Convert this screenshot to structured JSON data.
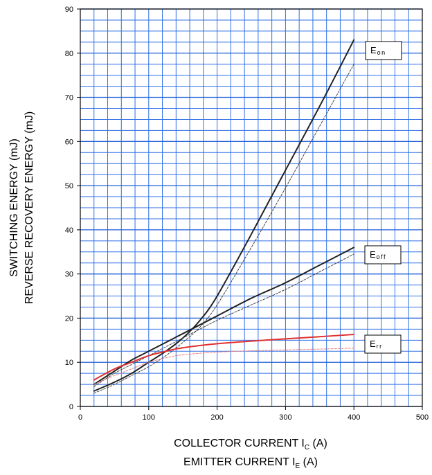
{
  "chart_data": {
    "type": "line",
    "xlabel": "COLLECTOR CURRENT I_C (A) / EMITTER CURRENT I_E (A)",
    "ylabel": "SWITCHING ENERGY (mJ) / REVERSE RECOVERY ENERGY (mJ)",
    "xlim": [
      0,
      500
    ],
    "ylim": [
      0,
      90
    ],
    "x_ticks": [
      "0",
      "100",
      "200",
      "300",
      "400",
      "500"
    ],
    "y_ticks": [
      "0",
      "10",
      "20",
      "30",
      "40",
      "50",
      "60",
      "70",
      "80",
      "90"
    ],
    "grid": true,
    "x_title_lines": [
      {
        "text": "COLLECTOR CURRENT",
        "symbol": "I",
        "sub": "C",
        "unit": "(A)"
      },
      {
        "text": "EMITTER CURRENT",
        "symbol": "I",
        "sub": "E",
        "unit": "(A)"
      }
    ],
    "y_title_lines": [
      {
        "text": "SWITCHING ENERGY   (mJ)"
      },
      {
        "text": "REVERSE RECOVERY ENERGY   (mJ)"
      }
    ],
    "series": [
      {
        "name": "Eon",
        "label_main": "E",
        "label_sub": "on",
        "color": "#222222",
        "style": "solid",
        "x": [
          20,
          50,
          75,
          100,
          125,
          150,
          175,
          200,
          250,
          300,
          350,
          400
        ],
        "y": [
          3.5,
          5.5,
          7.5,
          10.0,
          12.5,
          15.5,
          19.5,
          25.0,
          39.0,
          53.5,
          68.0,
          83.0
        ]
      },
      {
        "name": "Eon (dashed)",
        "color": "#444444",
        "style": "dashed",
        "x": [
          20,
          50,
          75,
          100,
          125,
          150,
          175,
          200,
          250,
          300,
          350,
          400
        ],
        "y": [
          3.0,
          5.0,
          7.0,
          9.0,
          11.5,
          14.5,
          18.0,
          23.0,
          36.0,
          49.5,
          63.5,
          77.5
        ]
      },
      {
        "name": "Eoff",
        "label_main": "E",
        "label_sub": "off",
        "color": "#222222",
        "style": "solid",
        "x": [
          20,
          50,
          75,
          100,
          150,
          200,
          250,
          300,
          350,
          400
        ],
        "y": [
          5.0,
          8.0,
          10.5,
          12.5,
          16.5,
          20.5,
          24.5,
          28.0,
          32.0,
          36.0
        ]
      },
      {
        "name": "Eoff (dashed)",
        "color": "#444444",
        "style": "dashed",
        "x": [
          20,
          50,
          75,
          100,
          150,
          200,
          250,
          300,
          350,
          400
        ],
        "y": [
          4.5,
          7.5,
          9.5,
          11.5,
          15.5,
          19.5,
          23.0,
          26.5,
          30.5,
          34.5
        ]
      },
      {
        "name": "Err",
        "label_main": "E",
        "label_sub": "rr",
        "color": "#e03030",
        "style": "solid",
        "x": [
          20,
          50,
          75,
          100,
          125,
          150,
          200,
          250,
          300,
          350,
          400
        ],
        "y": [
          6.0,
          8.5,
          10.0,
          11.5,
          12.5,
          13.3,
          14.2,
          14.8,
          15.3,
          15.8,
          16.3
        ]
      },
      {
        "name": "Err (dashed)",
        "color": "#f08080",
        "style": "dashed",
        "x": [
          20,
          50,
          75,
          100,
          125,
          150,
          200,
          250,
          300,
          350,
          400
        ],
        "y": [
          5.0,
          7.0,
          8.5,
          10.0,
          11.0,
          11.7,
          12.3,
          12.6,
          12.8,
          13.0,
          13.2
        ]
      }
    ]
  }
}
